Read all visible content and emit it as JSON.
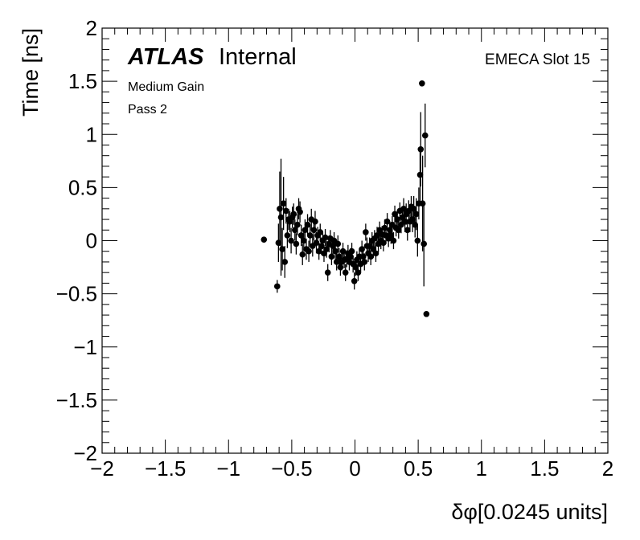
{
  "chart_data": {
    "type": "scatter",
    "title": "",
    "xlabel": "δφ[0.0245 units]",
    "ylabel": "Time [ns]",
    "xlim": [
      -2,
      2
    ],
    "ylim": [
      -2,
      2
    ],
    "xticks": [
      -2,
      -1.5,
      -1,
      -0.5,
      0,
      0.5,
      1,
      1.5,
      2
    ],
    "yticks": [
      -2,
      -1.5,
      -1,
      -0.5,
      0,
      0.5,
      1,
      1.5,
      2
    ],
    "xtick_labels": [
      "−2",
      "−1.5",
      "−1",
      "−0.5",
      "0",
      "0.5",
      "1",
      "1.5",
      "2"
    ],
    "ytick_labels": [
      "−2",
      "−1.5",
      "−1",
      "−0.5",
      "0",
      "0.5",
      "1",
      "1.5",
      "2"
    ],
    "grid": false,
    "annotations": {
      "experiment": "ATLAS",
      "status": "Internal",
      "gain": "Medium Gain",
      "pass": "Pass 2",
      "slot": "EMECA Slot 15"
    },
    "series": [
      {
        "points": [
          {
            "x": -0.72,
            "y": 0.01,
            "err": 0.0
          },
          {
            "x": -0.615,
            "y": -0.43,
            "err": 0.06
          },
          {
            "x": -0.605,
            "y": -0.02,
            "err": 0.18
          },
          {
            "x": -0.595,
            "y": 0.3,
            "err": 0.35
          },
          {
            "x": -0.585,
            "y": 0.22,
            "err": 0.55
          },
          {
            "x": -0.575,
            "y": -0.08,
            "err": 0.2
          },
          {
            "x": -0.565,
            "y": 0.35,
            "err": 0.25
          },
          {
            "x": -0.555,
            "y": -0.2,
            "err": 0.15
          },
          {
            "x": -0.545,
            "y": 0.28,
            "err": 0.12
          },
          {
            "x": -0.535,
            "y": 0.05,
            "err": 0.12
          },
          {
            "x": -0.525,
            "y": 0.2,
            "err": 0.1
          },
          {
            "x": -0.515,
            "y": 0.18,
            "err": 0.1
          },
          {
            "x": -0.505,
            "y": 0.0,
            "err": 0.12
          },
          {
            "x": -0.495,
            "y": 0.22,
            "err": 0.1
          },
          {
            "x": -0.485,
            "y": 0.25,
            "err": 0.1
          },
          {
            "x": -0.475,
            "y": 0.1,
            "err": 0.1
          },
          {
            "x": -0.465,
            "y": -0.03,
            "err": 0.1
          },
          {
            "x": -0.455,
            "y": 0.15,
            "err": 0.1
          },
          {
            "x": -0.445,
            "y": 0.3,
            "err": 0.1
          },
          {
            "x": -0.435,
            "y": 0.27,
            "err": 0.1
          },
          {
            "x": -0.425,
            "y": 0.05,
            "err": 0.1
          },
          {
            "x": -0.415,
            "y": -0.13,
            "err": 0.1
          },
          {
            "x": -0.405,
            "y": 0.0,
            "err": 0.1
          },
          {
            "x": -0.395,
            "y": 0.1,
            "err": 0.1
          },
          {
            "x": -0.385,
            "y": -0.08,
            "err": 0.1
          },
          {
            "x": -0.375,
            "y": 0.15,
            "err": 0.1
          },
          {
            "x": -0.365,
            "y": -0.1,
            "err": 0.1
          },
          {
            "x": -0.355,
            "y": 0.05,
            "err": 0.1
          },
          {
            "x": -0.345,
            "y": 0.2,
            "err": 0.1
          },
          {
            "x": -0.335,
            "y": -0.05,
            "err": 0.1
          },
          {
            "x": -0.325,
            "y": 0.1,
            "err": 0.1
          },
          {
            "x": -0.315,
            "y": 0.18,
            "err": 0.1
          },
          {
            "x": -0.305,
            "y": -0.02,
            "err": 0.1
          },
          {
            "x": -0.295,
            "y": 0.05,
            "err": 0.08
          },
          {
            "x": -0.285,
            "y": -0.1,
            "err": 0.08
          },
          {
            "x": -0.275,
            "y": 0.08,
            "err": 0.08
          },
          {
            "x": -0.265,
            "y": -0.05,
            "err": 0.08
          },
          {
            "x": -0.255,
            "y": 0.0,
            "err": 0.08
          },
          {
            "x": -0.245,
            "y": -0.12,
            "err": 0.08
          },
          {
            "x": -0.235,
            "y": 0.03,
            "err": 0.08
          },
          {
            "x": -0.225,
            "y": -0.08,
            "err": 0.08
          },
          {
            "x": -0.215,
            "y": -0.3,
            "err": 0.08
          },
          {
            "x": -0.205,
            "y": -0.03,
            "err": 0.08
          },
          {
            "x": -0.195,
            "y": 0.02,
            "err": 0.08
          },
          {
            "x": -0.185,
            "y": -0.15,
            "err": 0.08
          },
          {
            "x": -0.175,
            "y": -0.05,
            "err": 0.08
          },
          {
            "x": -0.165,
            "y": 0.0,
            "err": 0.08
          },
          {
            "x": -0.155,
            "y": -0.1,
            "err": 0.08
          },
          {
            "x": -0.145,
            "y": -0.2,
            "err": 0.08
          },
          {
            "x": -0.135,
            "y": -0.03,
            "err": 0.08
          },
          {
            "x": -0.125,
            "y": -0.15,
            "err": 0.08
          },
          {
            "x": -0.115,
            "y": -0.25,
            "err": 0.08
          },
          {
            "x": -0.105,
            "y": -0.2,
            "err": 0.08
          },
          {
            "x": -0.095,
            "y": -0.1,
            "err": 0.08
          },
          {
            "x": -0.085,
            "y": -0.18,
            "err": 0.08
          },
          {
            "x": -0.075,
            "y": -0.3,
            "err": 0.08
          },
          {
            "x": -0.065,
            "y": -0.17,
            "err": 0.08
          },
          {
            "x": -0.055,
            "y": -0.12,
            "err": 0.08
          },
          {
            "x": -0.045,
            "y": -0.2,
            "err": 0.08
          },
          {
            "x": -0.035,
            "y": -0.15,
            "err": 0.08
          },
          {
            "x": -0.025,
            "y": -0.1,
            "err": 0.08
          },
          {
            "x": -0.015,
            "y": -0.22,
            "err": 0.08
          },
          {
            "x": -0.005,
            "y": -0.38,
            "err": 0.08
          },
          {
            "x": 0.005,
            "y": -0.25,
            "err": 0.08
          },
          {
            "x": 0.015,
            "y": -0.18,
            "err": 0.08
          },
          {
            "x": 0.025,
            "y": -0.3,
            "err": 0.08
          },
          {
            "x": 0.035,
            "y": -0.15,
            "err": 0.08
          },
          {
            "x": 0.045,
            "y": -0.22,
            "err": 0.08
          },
          {
            "x": 0.055,
            "y": -0.08,
            "err": 0.08
          },
          {
            "x": 0.065,
            "y": -0.15,
            "err": 0.08
          },
          {
            "x": 0.075,
            "y": -0.2,
            "err": 0.08
          },
          {
            "x": 0.085,
            "y": 0.08,
            "err": 0.08
          },
          {
            "x": 0.095,
            "y": -0.05,
            "err": 0.08
          },
          {
            "x": 0.105,
            "y": -0.12,
            "err": 0.08
          },
          {
            "x": 0.115,
            "y": -0.05,
            "err": 0.08
          },
          {
            "x": 0.125,
            "y": -0.15,
            "err": 0.08
          },
          {
            "x": 0.135,
            "y": 0.0,
            "err": 0.08
          },
          {
            "x": 0.145,
            "y": -0.08,
            "err": 0.08
          },
          {
            "x": 0.155,
            "y": 0.02,
            "err": 0.08
          },
          {
            "x": 0.165,
            "y": -0.12,
            "err": 0.08
          },
          {
            "x": 0.175,
            "y": 0.05,
            "err": 0.08
          },
          {
            "x": 0.185,
            "y": -0.03,
            "err": 0.08
          },
          {
            "x": 0.195,
            "y": 0.1,
            "err": 0.08
          },
          {
            "x": 0.205,
            "y": 0.0,
            "err": 0.08
          },
          {
            "x": 0.215,
            "y": 0.06,
            "err": 0.08
          },
          {
            "x": 0.225,
            "y": -0.02,
            "err": 0.08
          },
          {
            "x": 0.235,
            "y": 0.12,
            "err": 0.08
          },
          {
            "x": 0.245,
            "y": 0.05,
            "err": 0.08
          },
          {
            "x": 0.255,
            "y": 0.18,
            "err": 0.08
          },
          {
            "x": 0.265,
            "y": 0.02,
            "err": 0.08
          },
          {
            "x": 0.275,
            "y": 0.1,
            "err": 0.08
          },
          {
            "x": 0.285,
            "y": 0.05,
            "err": 0.08
          },
          {
            "x": 0.295,
            "y": 0.15,
            "err": 0.08
          },
          {
            "x": 0.305,
            "y": 0.0,
            "err": 0.08
          },
          {
            "x": 0.315,
            "y": 0.25,
            "err": 0.08
          },
          {
            "x": 0.325,
            "y": 0.12,
            "err": 0.08
          },
          {
            "x": 0.335,
            "y": 0.2,
            "err": 0.08
          },
          {
            "x": 0.345,
            "y": 0.1,
            "err": 0.08
          },
          {
            "x": 0.355,
            "y": 0.28,
            "err": 0.08
          },
          {
            "x": 0.365,
            "y": 0.15,
            "err": 0.08
          },
          {
            "x": 0.375,
            "y": 0.22,
            "err": 0.08
          },
          {
            "x": 0.385,
            "y": 0.3,
            "err": 0.1
          },
          {
            "x": 0.395,
            "y": 0.18,
            "err": 0.1
          },
          {
            "x": 0.405,
            "y": 0.25,
            "err": 0.1
          },
          {
            "x": 0.415,
            "y": 0.1,
            "err": 0.1
          },
          {
            "x": 0.425,
            "y": 0.28,
            "err": 0.1
          },
          {
            "x": 0.435,
            "y": 0.18,
            "err": 0.1
          },
          {
            "x": 0.445,
            "y": 0.32,
            "err": 0.1
          },
          {
            "x": 0.455,
            "y": 0.2,
            "err": 0.12
          },
          {
            "x": 0.465,
            "y": 0.3,
            "err": 0.12
          },
          {
            "x": 0.475,
            "y": 0.15,
            "err": 0.12
          },
          {
            "x": 0.485,
            "y": 0.25,
            "err": 0.15
          },
          {
            "x": 0.495,
            "y": 0.0,
            "err": 0.15
          },
          {
            "x": 0.505,
            "y": 0.35,
            "err": 0.15
          },
          {
            "x": 0.515,
            "y": 0.62,
            "err": 0.25
          },
          {
            "x": 0.52,
            "y": 0.86,
            "err": 0.35
          },
          {
            "x": 0.53,
            "y": 1.48,
            "err": 0.0
          },
          {
            "x": 0.535,
            "y": 0.35,
            "err": 0.45
          },
          {
            "x": 0.545,
            "y": -0.03,
            "err": 0.4
          },
          {
            "x": 0.555,
            "y": 0.99,
            "err": 0.3
          },
          {
            "x": 0.565,
            "y": -0.69,
            "err": 0.0
          }
        ]
      }
    ]
  }
}
